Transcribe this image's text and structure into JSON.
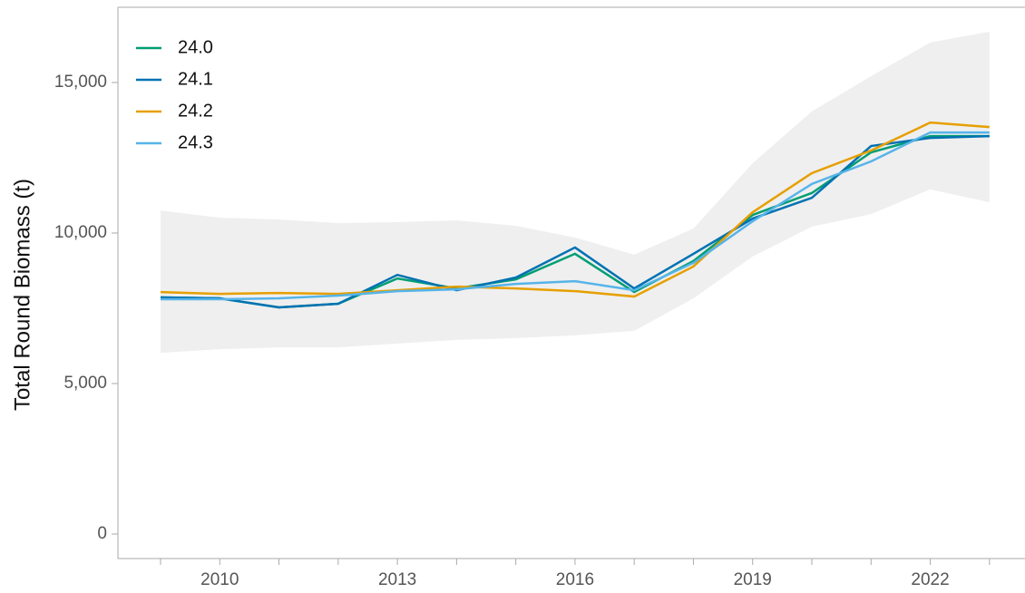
{
  "chart_data": {
    "type": "line",
    "y_label": "Total Round Biomass (t)",
    "x": [
      2009,
      2010,
      2011,
      2012,
      2013,
      2014,
      2015,
      2016,
      2017,
      2018,
      2019,
      2020,
      2021,
      2022,
      2023
    ],
    "band": {
      "color": "#efefef",
      "upper": [
        10750,
        10510,
        10450,
        10330,
        10360,
        10420,
        10240,
        9850,
        9280,
        10150,
        12320,
        14040,
        15210,
        16330,
        16690
      ],
      "lower": [
        6020,
        6140,
        6200,
        6200,
        6330,
        6450,
        6510,
        6600,
        6750,
        7830,
        9220,
        10210,
        10630,
        11450,
        11020
      ]
    },
    "series": [
      {
        "name": "24.0",
        "color": "#009E73",
        "values": [
          7860,
          7830,
          7530,
          7650,
          8490,
          8160,
          8460,
          9310,
          8040,
          9070,
          10600,
          11330,
          12680,
          13220,
          13220
        ]
      },
      {
        "name": "24.1",
        "color": "#0072B2",
        "values": [
          7860,
          7830,
          7530,
          7650,
          8610,
          8100,
          8520,
          9520,
          8160,
          9310,
          10480,
          11170,
          12890,
          13160,
          13220
        ]
      },
      {
        "name": "24.2",
        "color": "#E69F00",
        "values": [
          8040,
          7980,
          8010,
          7980,
          8100,
          8220,
          8160,
          8070,
          7890,
          8890,
          10690,
          11990,
          12740,
          13670,
          13520
        ]
      },
      {
        "name": "24.3",
        "color": "#56B4E9",
        "values": [
          7800,
          7800,
          7830,
          7920,
          8070,
          8130,
          8310,
          8400,
          8100,
          9010,
          10390,
          11630,
          12380,
          13340,
          13340
        ]
      }
    ],
    "xlim": [
      2008.28,
      2023.6
    ],
    "xticks": [
      2010,
      2013,
      2016,
      2019,
      2022
    ],
    "x_minor_ticks": [
      2009,
      2011,
      2012,
      2014,
      2015,
      2017,
      2018,
      2020,
      2021,
      2023
    ],
    "ylim": [
      -813,
      17500
    ],
    "yticks": [
      0,
      {
        "value": 5000,
        "label": "5,000"
      },
      {
        "value": 10000,
        "label": "10,000"
      },
      {
        "value": 15000,
        "label": "15,000"
      }
    ],
    "legend": "top-left"
  }
}
